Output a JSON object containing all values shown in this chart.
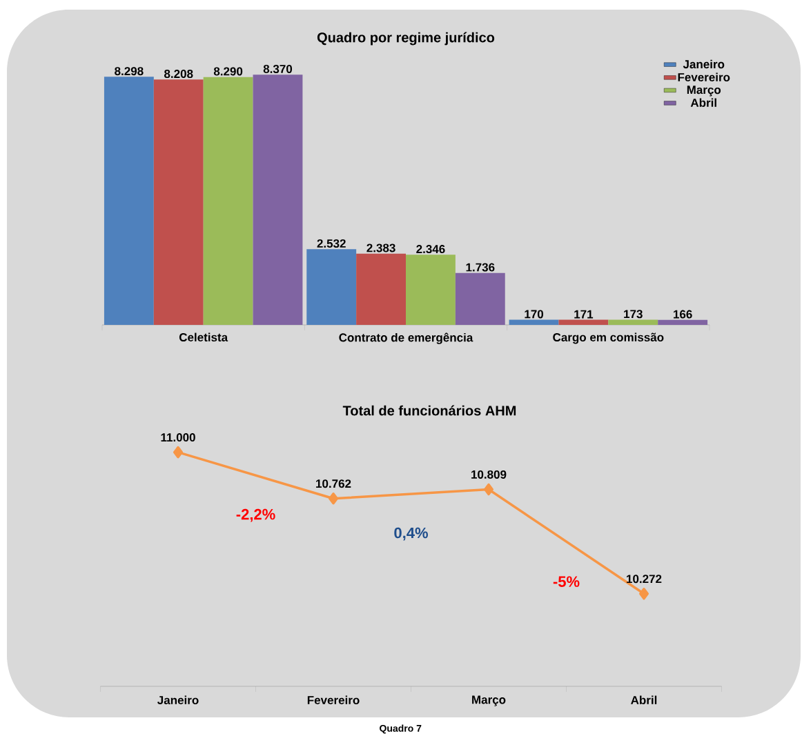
{
  "chart_data": [
    {
      "type": "bar",
      "title": "Quadro por regime jurídico",
      "categories": [
        "Celetista",
        "Contrato de emergência",
        "Cargo em comissão"
      ],
      "legend": "top right",
      "series": [
        {
          "name": "Janeiro",
          "color": "#4f81bd",
          "values": [
            8298,
            2532,
            170
          ],
          "value_labels": [
            "8.298",
            "2.532",
            "170"
          ]
        },
        {
          "name": "Fevereiro",
          "color": "#c0504d",
          "values": [
            8208,
            2383,
            171
          ],
          "value_labels": [
            "8.208",
            "2.383",
            "171"
          ]
        },
        {
          "name": "Março",
          "color": "#9bbb59",
          "values": [
            8290,
            2346,
            173
          ],
          "value_labels": [
            "8.290",
            "2.346",
            "173"
          ]
        },
        {
          "name": "Abril",
          "color": "#8064a2",
          "values": [
            8370,
            1736,
            166
          ],
          "value_labels": [
            "8.370",
            "1.736",
            "166"
          ]
        }
      ]
    },
    {
      "type": "line",
      "title": "Total de funcionários  AHM",
      "categories": [
        "Janeiro",
        "Fevereiro",
        "Março",
        "Abril"
      ],
      "marker": "diamond",
      "series": [
        {
          "color": "#f79646",
          "values": [
            11000,
            10762,
            10809,
            10272
          ],
          "value_labels": [
            "11.000",
            "10.762",
            "10.809",
            "10.272"
          ]
        }
      ],
      "annotations": [
        "-2,2%",
        "0,4%",
        "-5%",
        "Quadro 7"
      ]
    }
  ]
}
